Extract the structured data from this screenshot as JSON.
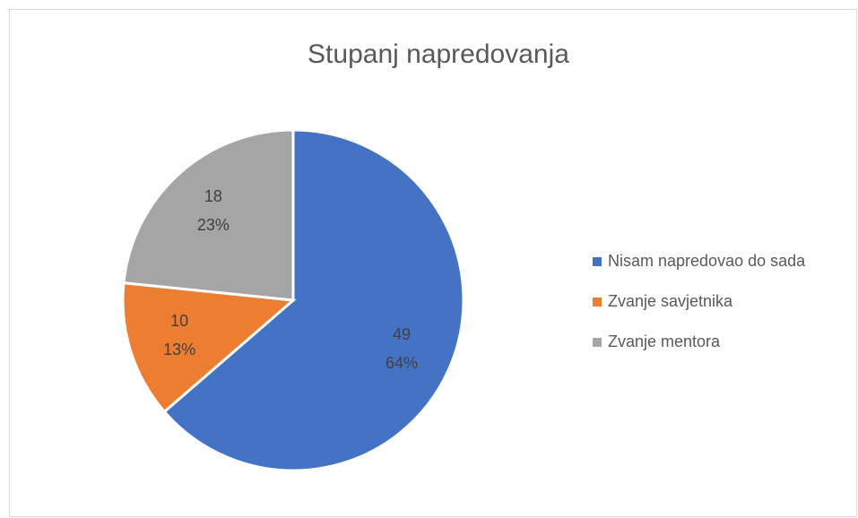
{
  "chart_data": {
    "type": "pie",
    "title": "Stupanj napredovanja",
    "categories": [
      "Nisam napredovao do sada",
      "Zvanje savjetnika",
      "Zvanje mentora"
    ],
    "values": [
      49,
      10,
      18
    ],
    "percent_labels": [
      "64%",
      "13%",
      "23%"
    ],
    "colors": [
      "#4472c4",
      "#ed7d31",
      "#a5a5a5"
    ],
    "legend": "right"
  }
}
